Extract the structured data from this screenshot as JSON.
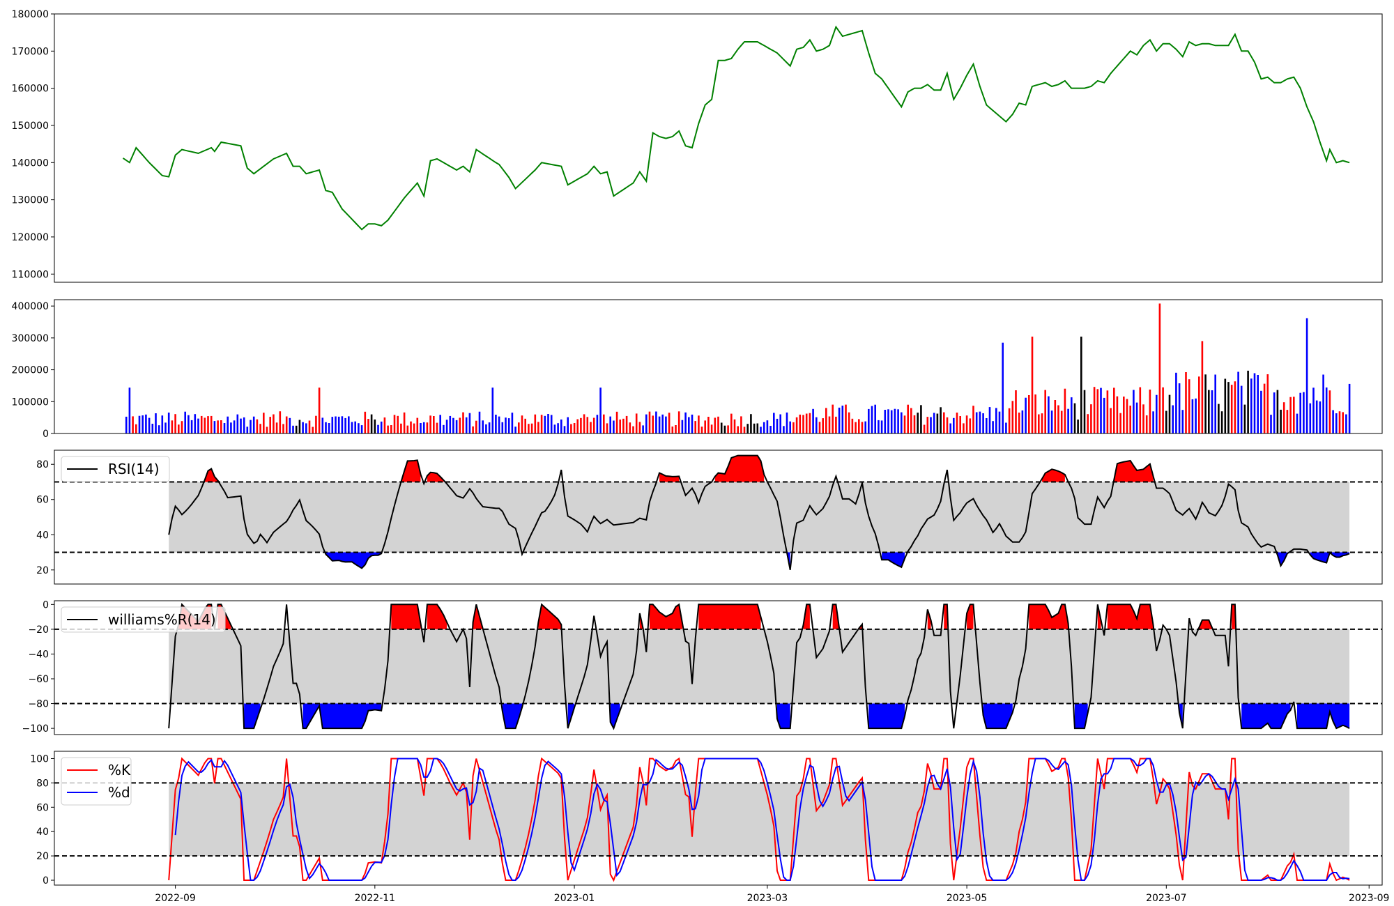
{
  "chart_data": [
    {
      "panel": "price",
      "type": "line",
      "series": [
        {
          "color": "#008000",
          "keypoints": [
            [
              "2022-08-16",
              141200
            ],
            [
              "2022-08-18",
              140000
            ],
            [
              "2022-08-20",
              144000
            ],
            [
              "2022-08-24",
              140000
            ],
            [
              "2022-08-28",
              136500
            ],
            [
              "2022-08-30",
              136200
            ],
            [
              "2022-09-01",
              142000
            ],
            [
              "2022-09-03",
              143500
            ],
            [
              "2022-09-08",
              142500
            ],
            [
              "2022-09-12",
              144000
            ],
            [
              "2022-09-13",
              143000
            ],
            [
              "2022-09-15",
              145500
            ],
            [
              "2022-09-21",
              144500
            ],
            [
              "2022-09-23",
              138500
            ],
            [
              "2022-09-25",
              137000
            ],
            [
              "2022-10-01",
              141000
            ],
            [
              "2022-10-05",
              142500
            ],
            [
              "2022-10-07",
              139000
            ],
            [
              "2022-10-09",
              139000
            ],
            [
              "2022-10-11",
              137000
            ],
            [
              "2022-10-15",
              138000
            ],
            [
              "2022-10-17",
              132500
            ],
            [
              "2022-10-19",
              132000
            ],
            [
              "2022-10-22",
              127500
            ],
            [
              "2022-10-28",
              122000
            ],
            [
              "2022-10-30",
              123500
            ],
            [
              "2022-11-01",
              123500
            ],
            [
              "2022-11-03",
              123000
            ],
            [
              "2022-11-05",
              124500
            ],
            [
              "2022-11-10",
              130500
            ],
            [
              "2022-11-14",
              134500
            ],
            [
              "2022-11-16",
              131000
            ],
            [
              "2022-11-18",
              140500
            ],
            [
              "2022-11-20",
              141000
            ],
            [
              "2022-11-24",
              139000
            ],
            [
              "2022-11-26",
              138000
            ],
            [
              "2022-11-28",
              139000
            ],
            [
              "2022-11-30",
              137500
            ],
            [
              "2022-12-02",
              143500
            ],
            [
              "2022-12-08",
              140000
            ],
            [
              "2022-12-09",
              139500
            ],
            [
              "2022-12-12",
              136000
            ],
            [
              "2022-12-14",
              133000
            ],
            [
              "2022-12-20",
              138000
            ],
            [
              "2022-12-22",
              140000
            ],
            [
              "2022-12-28",
              139000
            ],
            [
              "2022-12-30",
              134000
            ],
            [
              "2023-01-05",
              137000
            ],
            [
              "2023-01-07",
              139000
            ],
            [
              "2023-01-09",
              137000
            ],
            [
              "2023-01-11",
              137500
            ],
            [
              "2023-01-13",
              131000
            ],
            [
              "2023-01-19",
              134500
            ],
            [
              "2023-01-21",
              137500
            ],
            [
              "2023-01-23",
              135000
            ],
            [
              "2023-01-25",
              148000
            ],
            [
              "2023-01-27",
              147000
            ],
            [
              "2023-01-29",
              146500
            ],
            [
              "2023-01-31",
              147000
            ],
            [
              "2023-02-02",
              148500
            ],
            [
              "2023-02-04",
              144500
            ],
            [
              "2023-02-06",
              144000
            ],
            [
              "2023-02-08",
              150500
            ],
            [
              "2023-02-10",
              155500
            ],
            [
              "2023-02-12",
              157000
            ],
            [
              "2023-02-14",
              167500
            ],
            [
              "2023-02-16",
              167500
            ],
            [
              "2023-02-18",
              168000
            ],
            [
              "2023-02-20",
              170500
            ],
            [
              "2023-02-22",
              172500
            ],
            [
              "2023-02-26",
              172500
            ],
            [
              "2023-02-28",
              171500
            ],
            [
              "2023-03-02",
              170500
            ],
            [
              "2023-03-04",
              169500
            ],
            [
              "2023-03-08",
              166000
            ],
            [
              "2023-03-10",
              170500
            ],
            [
              "2023-03-12",
              171000
            ],
            [
              "2023-03-14",
              173000
            ],
            [
              "2023-03-16",
              170000
            ],
            [
              "2023-03-18",
              170500
            ],
            [
              "2023-03-20",
              171500
            ],
            [
              "2023-03-22",
              176500
            ],
            [
              "2023-03-24",
              174000
            ],
            [
              "2023-03-28",
              175000
            ],
            [
              "2023-03-30",
              175500
            ],
            [
              "2023-04-01",
              169500
            ],
            [
              "2023-04-03",
              164000
            ],
            [
              "2023-04-05",
              162500
            ],
            [
              "2023-04-07",
              160000
            ],
            [
              "2023-04-09",
              157500
            ],
            [
              "2023-04-11",
              155000
            ],
            [
              "2023-04-13",
              159000
            ],
            [
              "2023-04-15",
              160000
            ],
            [
              "2023-04-17",
              160000
            ],
            [
              "2023-04-19",
              161000
            ],
            [
              "2023-04-21",
              159500
            ],
            [
              "2023-04-23",
              159500
            ],
            [
              "2023-04-25",
              164000
            ],
            [
              "2023-04-27",
              157000
            ],
            [
              "2023-04-29",
              160000
            ],
            [
              "2023-05-01",
              163500
            ],
            [
              "2023-05-03",
              166500
            ],
            [
              "2023-05-05",
              160500
            ],
            [
              "2023-05-07",
              155500
            ],
            [
              "2023-05-09",
              154000
            ],
            [
              "2023-05-11",
              152500
            ],
            [
              "2023-05-13",
              151000
            ],
            [
              "2023-05-15",
              153000
            ],
            [
              "2023-05-17",
              156000
            ],
            [
              "2023-05-19",
              155500
            ],
            [
              "2023-05-21",
              160500
            ],
            [
              "2023-05-23",
              161000
            ],
            [
              "2023-05-25",
              161500
            ],
            [
              "2023-05-27",
              160500
            ],
            [
              "2023-05-29",
              161000
            ],
            [
              "2023-05-31",
              162000
            ],
            [
              "2023-06-02",
              160000
            ],
            [
              "2023-06-04",
              160000
            ],
            [
              "2023-06-06",
              160000
            ],
            [
              "2023-06-08",
              160500
            ],
            [
              "2023-06-10",
              162000
            ],
            [
              "2023-06-12",
              161500
            ],
            [
              "2023-06-14",
              164000
            ],
            [
              "2023-06-16",
              166000
            ],
            [
              "2023-06-18",
              168000
            ],
            [
              "2023-06-20",
              170000
            ],
            [
              "2023-06-22",
              169000
            ],
            [
              "2023-06-24",
              171500
            ],
            [
              "2023-06-26",
              173000
            ],
            [
              "2023-06-28",
              170000
            ],
            [
              "2023-06-30",
              172000
            ],
            [
              "2023-07-02",
              172000
            ],
            [
              "2023-07-04",
              170500
            ],
            [
              "2023-07-06",
              168500
            ],
            [
              "2023-07-08",
              172500
            ],
            [
              "2023-07-10",
              171500
            ],
            [
              "2023-07-12",
              172000
            ],
            [
              "2023-07-14",
              172000
            ],
            [
              "2023-07-16",
              171500
            ],
            [
              "2023-07-18",
              171500
            ],
            [
              "2023-07-20",
              171500
            ],
            [
              "2023-07-22",
              174500
            ],
            [
              "2023-07-24",
              170000
            ],
            [
              "2023-07-26",
              170000
            ],
            [
              "2023-07-28",
              167000
            ],
            [
              "2023-07-30",
              162500
            ],
            [
              "2023-08-01",
              163000
            ],
            [
              "2023-08-03",
              161500
            ],
            [
              "2023-08-05",
              161500
            ],
            [
              "2023-08-07",
              162500
            ],
            [
              "2023-08-09",
              163000
            ],
            [
              "2023-08-11",
              160000
            ],
            [
              "2023-08-13",
              155000
            ],
            [
              "2023-08-15",
              151000
            ],
            [
              "2023-08-17",
              145500
            ],
            [
              "2023-08-19",
              140500
            ],
            [
              "2023-08-20",
              143500
            ],
            [
              "2023-08-22",
              140000
            ],
            [
              "2023-08-24",
              140500
            ],
            [
              "2023-08-26",
              140000
            ]
          ]
        }
      ],
      "ylim": [
        107800,
        180000
      ],
      "yticks": [
        "110000",
        "120000",
        "130000",
        "140000",
        "150000",
        "160000",
        "170000",
        "180000"
      ]
    },
    {
      "panel": "volume",
      "type": "bar",
      "colors": {
        "up": "#ff0000",
        "down": "#0000ff",
        "flat": "#000000"
      },
      "ylim": [
        0,
        420000
      ],
      "yticks": [
        "0",
        "100000",
        "200000",
        "300000",
        "400000"
      ]
    },
    {
      "panel": "rsi",
      "type": "line",
      "series": [
        {
          "name": "RSI(14)",
          "color": "#000000"
        }
      ],
      "bands": {
        "upper": 70,
        "lower": 30,
        "fill": "#d3d3d3",
        "over_color": "#ff0000",
        "under_color": "#0000ff"
      },
      "ylim": [
        12,
        88
      ],
      "yticks": [
        "20",
        "40",
        "60",
        "80"
      ]
    },
    {
      "panel": "williams",
      "type": "line",
      "series": [
        {
          "name": "williams%R(14)",
          "color": "#000000"
        }
      ],
      "bands": {
        "upper": -20,
        "lower": -80,
        "fill": "#d3d3d3",
        "over_color": "#ff0000",
        "under_color": "#0000ff"
      },
      "ylim": [
        -105,
        3
      ],
      "yticks": [
        "0",
        "−20",
        "−40",
        "−60",
        "−80",
        "−100"
      ]
    },
    {
      "panel": "stochastic",
      "type": "line",
      "series": [
        {
          "name": "%K",
          "color": "#ff0000"
        },
        {
          "name": "%d",
          "color": "#0000ff"
        }
      ],
      "bands": {
        "upper": 80,
        "lower": 20,
        "fill": "#d3d3d3"
      },
      "ylim": [
        -4,
        106
      ],
      "yticks": [
        "0",
        "20",
        "40",
        "60",
        "80",
        "100"
      ]
    }
  ],
  "x_axis": {
    "ticks": [
      "2022-09",
      "2022-11",
      "2023-01",
      "2023-03",
      "2023-05",
      "2023-07",
      "2023-09"
    ],
    "range": [
      "2022-07-26",
      "2023-09-05"
    ],
    "data_range": [
      "2022-08-16",
      "2023-08-26"
    ]
  }
}
